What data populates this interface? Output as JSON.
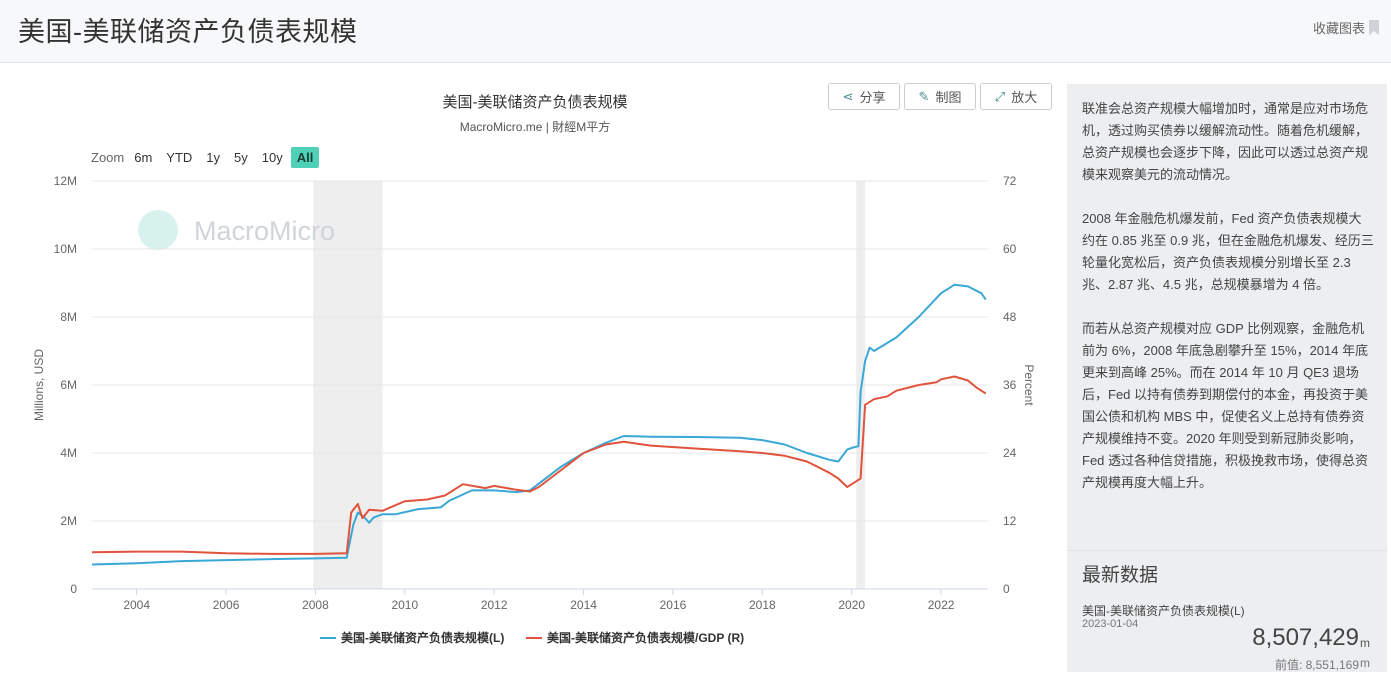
{
  "header": {
    "title": "美国-美联储资产负债表规模",
    "collect_label": "收藏图表"
  },
  "toolbar": {
    "share_label": "分享",
    "draw_label": "制图",
    "enlarge_label": "放大"
  },
  "zoom": {
    "label": "Zoom",
    "options": [
      "6m",
      "YTD",
      "1y",
      "5y",
      "10y",
      "All"
    ],
    "active": "All"
  },
  "watermark": "MacroMicro",
  "colors": {
    "series_left": "#3aa8d6",
    "series_right": "#e0533c",
    "recession": "#eeeeee",
    "active_zoom": "#4fd1b8"
  },
  "chart_data": {
    "type": "line",
    "title": "美国-美联储资产负债表规模",
    "subtitle": "MacroMicro.me | 財經M平方",
    "ylabel_left": "Millions, USD",
    "ylabel_right": "Percent",
    "ylim_left": [
      0,
      12000000
    ],
    "ylim_right": [
      0,
      72
    ],
    "xlim": [
      2003.0,
      2023.05
    ],
    "x_ticks": [
      "2004",
      "2006",
      "2008",
      "2010",
      "2012",
      "2014",
      "2016",
      "2018",
      "2020",
      "2022"
    ],
    "y_ticks_left": [
      "0",
      "2M",
      "4M",
      "6M",
      "8M",
      "10M",
      "12M"
    ],
    "y_ticks_right": [
      "0",
      "12",
      "24",
      "36",
      "48",
      "60",
      "72"
    ],
    "recessions": [
      [
        2007.95,
        2009.5
      ],
      [
        2020.1,
        2020.3
      ]
    ],
    "legend_position": "bottom",
    "series": [
      {
        "name": "美国-美联储资产负债表规模(L)",
        "axis": "left",
        "x": [
          2003.0,
          2004.0,
          2005.0,
          2006.0,
          2007.0,
          2008.0,
          2008.7,
          2008.85,
          2008.95,
          2009.1,
          2009.2,
          2009.3,
          2009.5,
          2009.8,
          2010.3,
          2010.8,
          2011.0,
          2011.5,
          2011.8,
          2012.0,
          2012.5,
          2012.8,
          2013.0,
          2013.5,
          2014.0,
          2014.5,
          2014.9,
          2015.5,
          2016.5,
          2017.5,
          2018.0,
          2018.5,
          2019.0,
          2019.5,
          2019.7,
          2019.9,
          2020.0,
          2020.15,
          2020.2,
          2020.3,
          2020.4,
          2020.5,
          2021.0,
          2021.5,
          2022.0,
          2022.3,
          2022.6,
          2022.9,
          2023.0
        ],
        "y": [
          720000,
          760000,
          820000,
          850000,
          880000,
          900000,
          920000,
          1900000,
          2250000,
          2100000,
          1950000,
          2100000,
          2200000,
          2200000,
          2350000,
          2400000,
          2600000,
          2900000,
          2900000,
          2900000,
          2850000,
          2900000,
          3100000,
          3600000,
          4000000,
          4300000,
          4500000,
          4480000,
          4470000,
          4450000,
          4380000,
          4250000,
          4000000,
          3800000,
          3750000,
          4100000,
          4150000,
          4200000,
          5800000,
          6700000,
          7100000,
          7000000,
          7400000,
          8000000,
          8700000,
          8950000,
          8900000,
          8700000,
          8507429
        ]
      },
      {
        "name": "美国-美联储资产负债表规模/GDP (R)",
        "axis": "right",
        "x": [
          2003.0,
          2004.0,
          2005.0,
          2006.0,
          2007.0,
          2008.0,
          2008.7,
          2008.8,
          2008.95,
          2009.05,
          2009.2,
          2009.5,
          2010.0,
          2010.5,
          2010.9,
          2011.3,
          2011.8,
          2012.0,
          2012.5,
          2012.8,
          2013.0,
          2013.5,
          2014.0,
          2014.5,
          2014.9,
          2015.5,
          2016.5,
          2017.5,
          2018.0,
          2018.5,
          2019.0,
          2019.5,
          2019.7,
          2019.9,
          2020.1,
          2020.2,
          2020.3,
          2020.5,
          2020.8,
          2021.0,
          2021.5,
          2021.9,
          2022.0,
          2022.3,
          2022.6,
          2022.8,
          2023.0
        ],
        "y": [
          6.5,
          6.6,
          6.6,
          6.3,
          6.2,
          6.2,
          6.3,
          13.5,
          15.0,
          12.5,
          14.0,
          13.8,
          15.5,
          15.8,
          16.5,
          18.5,
          17.8,
          18.2,
          17.5,
          17.2,
          18.0,
          21.0,
          24.0,
          25.5,
          26.0,
          25.3,
          24.8,
          24.3,
          24.0,
          23.5,
          22.5,
          20.5,
          19.5,
          18.0,
          19.0,
          19.5,
          32.5,
          33.5,
          34.0,
          35.0,
          36.0,
          36.5,
          37.0,
          37.5,
          36.8,
          35.5,
          34.5
        ]
      }
    ]
  },
  "sidebar": {
    "description": "联准会总资产规模大幅增加时，通常是应对市场危机，透过购买债券以缓解流动性。随着危机缓解，总资产规模也会逐步下降，因此可以透过总资产规模来观察美元的流动情况。\n\n2008 年金融危机爆发前，Fed 资产负债表规模大约在 0.85 兆至 0.9 兆，但在金融危机爆发、经历三轮量化宽松后，资产负债表规模分别增长至 2.3 兆、2.87 兆、4.5 兆，总规模暴增为 4 倍。\n\n而若从总资产规模对应 GDP 比例观察，金融危机前为 6%，2008 年底急剧攀升至 15%，2014 年底更来到高峰 25%。而在 2014 年 10 月 QE3 退场后，Fed 以持有债券到期偿付的本金，再投资于美国公债和机构 MBS 中，促使名义上总持有债券资产规模维持不变。2020 年则受到新冠肺炎影响，Fed 透过各种信贷措施，积极挽救市场，使得总资产规模再度大幅上升。",
    "latest_title": "最新数据",
    "latest_name": "美国-美联储资产负债表规模(L)",
    "latest_date": "2023-01-04",
    "latest_value": "8,507,429",
    "latest_unit": "m",
    "prev_label": "前值: 8,551,169",
    "prev_unit": "m"
  }
}
